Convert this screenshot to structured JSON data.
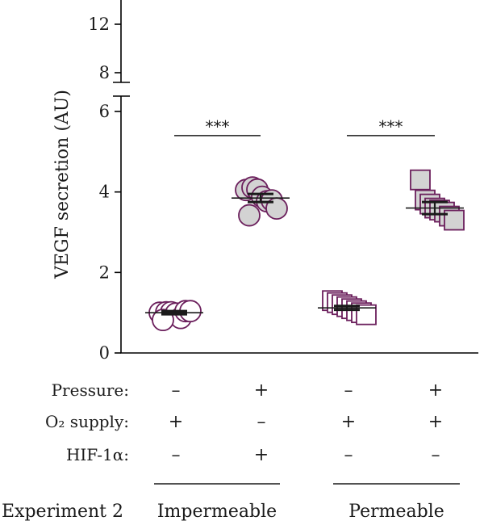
{
  "chart_data": {
    "type": "scatter",
    "ylabel": "VEGF secretion (AU)",
    "y_axis": {
      "lower_range": [
        0,
        6
      ],
      "upper_range": [
        7.2,
        14
      ],
      "axis_break": true,
      "lower_ticks": [
        {
          "value": 0,
          "label": "0"
        },
        {
          "value": 2,
          "label": "2"
        },
        {
          "value": 4,
          "label": "4"
        },
        {
          "value": 6,
          "label": "6"
        }
      ],
      "upper_ticks": [
        {
          "value": 8,
          "label": "8"
        },
        {
          "value": 12,
          "label": "12"
        }
      ]
    },
    "groups": [
      {
        "marker": "circle",
        "fill": "#ffffff",
        "points": [
          1.0,
          1.05,
          0.95,
          1.0,
          0.95,
          1.0,
          1.1,
          0.9
        ],
        "mean": 1.0,
        "sem": 0.04
      },
      {
        "marker": "circle",
        "fill": "#d3d3d3",
        "points": [
          4.05,
          4.15,
          4.0,
          3.9,
          3.85,
          3.75,
          3.65,
          3.5
        ],
        "mean": 3.85,
        "sem": 0.1
      },
      {
        "marker": "square",
        "fill": "#ffffff",
        "points": [
          1.3,
          1.25,
          1.2,
          1.15,
          1.1,
          1.05,
          1.0,
          0.95
        ],
        "mean": 1.12,
        "sem": 0.05
      },
      {
        "marker": "square",
        "fill": "#d3d3d3",
        "points": [
          4.3,
          3.8,
          3.7,
          3.6,
          3.55,
          3.5,
          3.4,
          3.3
        ],
        "mean": 3.6,
        "sem": 0.15
      }
    ],
    "significance": [
      {
        "from_group": 0,
        "to_group": 1,
        "label": "***",
        "y": 5.4
      },
      {
        "from_group": 2,
        "to_group": 3,
        "label": "***",
        "y": 5.4
      }
    ],
    "conditions": [
      {
        "label": "Pressure:",
        "values": [
          "–",
          "+",
          "–",
          "+"
        ]
      },
      {
        "label": "O₂ supply:",
        "values": [
          "+",
          "–",
          "+",
          "+"
        ]
      },
      {
        "label": "HIF-1α:",
        "values": [
          "–",
          "+",
          "–",
          "–"
        ]
      }
    ],
    "experiment": {
      "label": "Experiment 2",
      "groups": [
        {
          "label": "Impermeable",
          "spans": [
            0,
            1
          ]
        },
        {
          "label": "Permeable",
          "spans": [
            2,
            3
          ]
        }
      ]
    },
    "colors": {
      "marker_edge": "#6b1f5c",
      "mean_line": "#1a1a1a",
      "gray_fill": "#d3d3d3"
    }
  }
}
